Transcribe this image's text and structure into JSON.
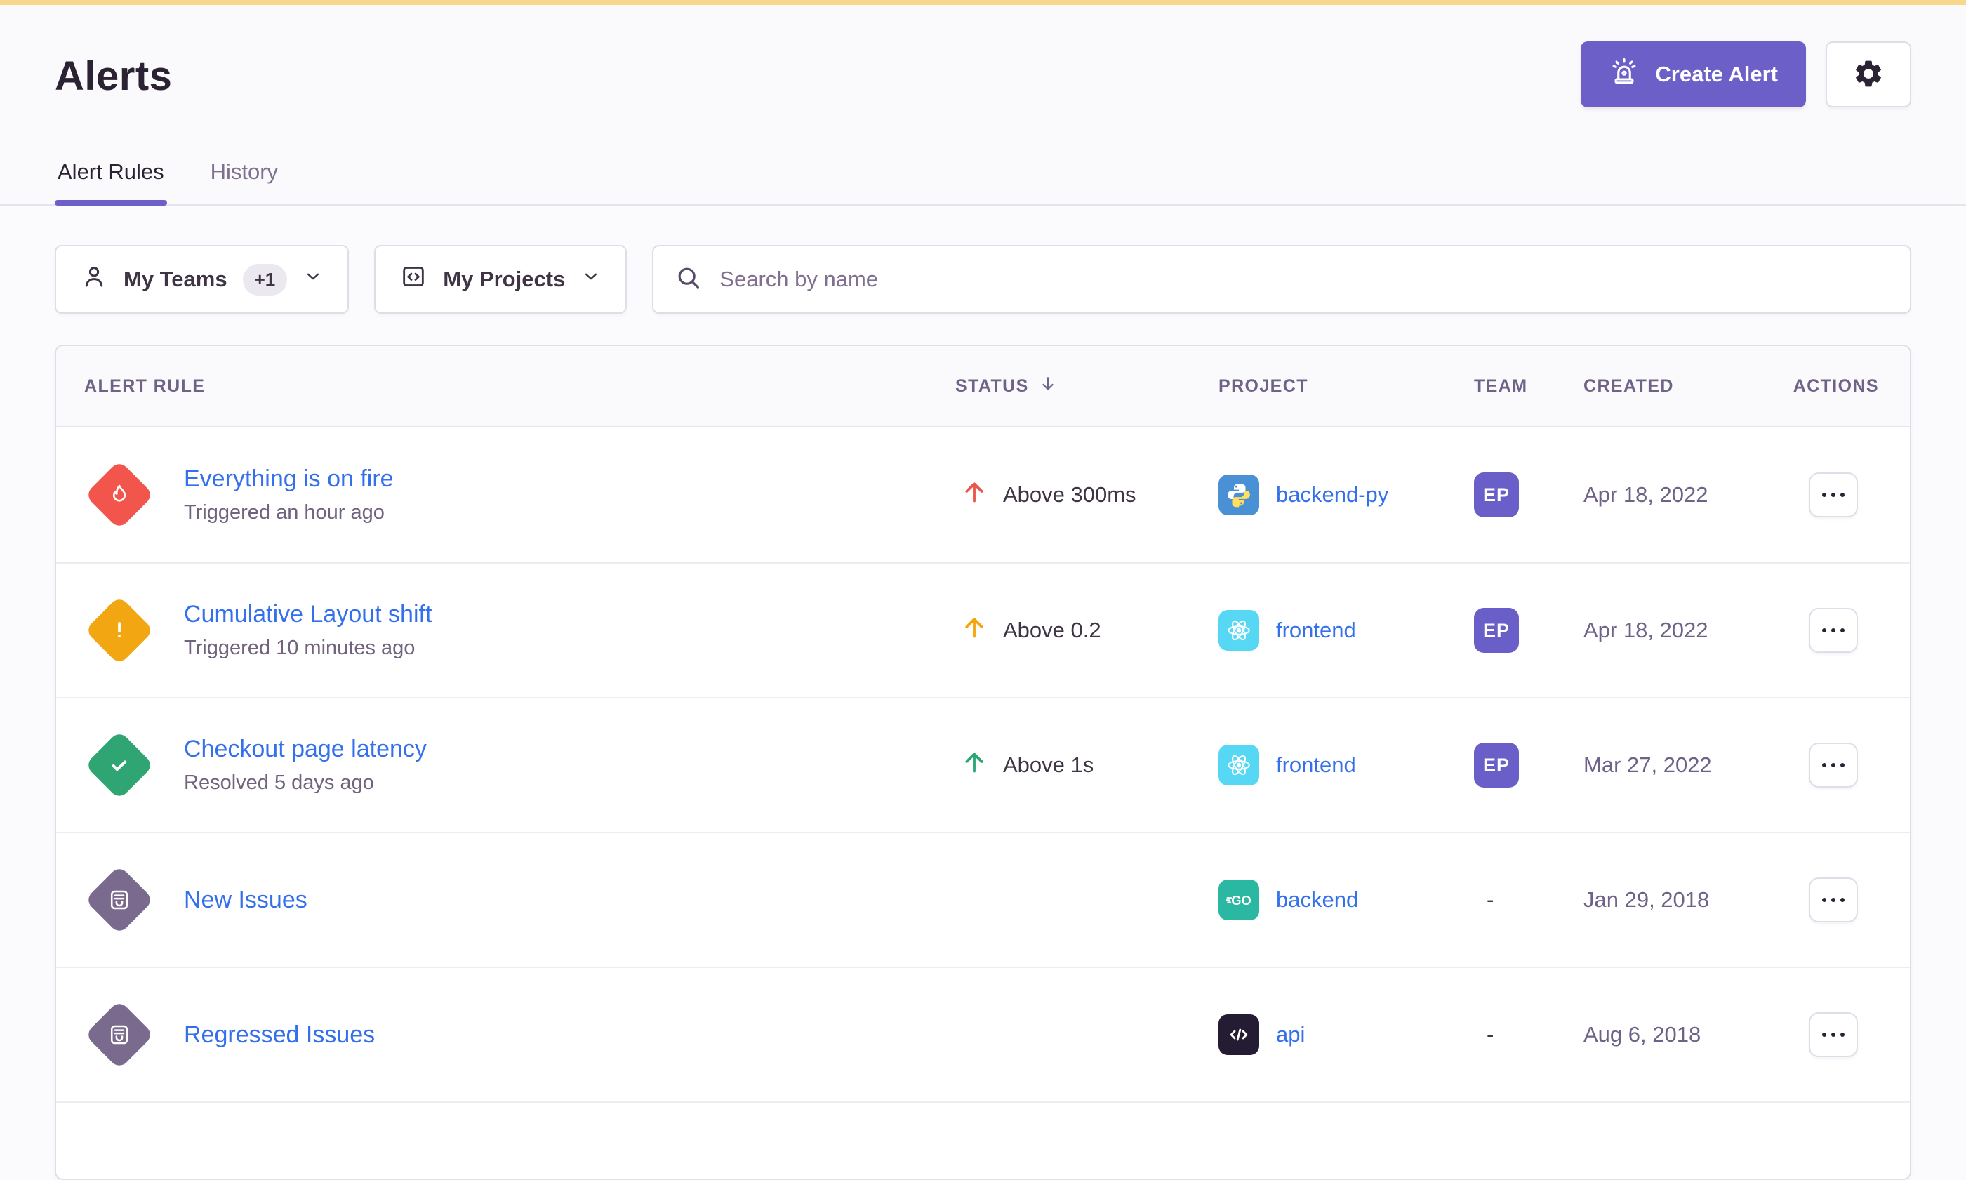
{
  "page": {
    "title": "Alerts"
  },
  "header": {
    "create_alert_label": "Create Alert",
    "tabs": [
      {
        "label": "Alert Rules",
        "active": true
      },
      {
        "label": "History",
        "active": false
      }
    ]
  },
  "filters": {
    "teams_label": "My Teams",
    "teams_extra_count": "+1",
    "projects_label": "My Projects",
    "search_placeholder": "Search by name"
  },
  "table": {
    "columns": [
      "Alert Rule",
      "Status",
      "Project",
      "Team",
      "Created",
      "Actions"
    ],
    "sorted_column": "Status",
    "sort_direction": "desc",
    "rows": [
      {
        "severity": "critical",
        "name": "Everything is on fire",
        "detail": "Triggered an hour ago",
        "status": {
          "direction": "up",
          "label": "Above 300ms",
          "color": "#E8564B"
        },
        "project": {
          "platform": "python",
          "name": "backend-py"
        },
        "team": "EP",
        "created": "Apr 18, 2022"
      },
      {
        "severity": "warning",
        "name": "Cumulative Layout shift",
        "detail": "Triggered 10 minutes ago",
        "status": {
          "direction": "up",
          "label": "Above 0.2",
          "color": "#F2A50C"
        },
        "project": {
          "platform": "react",
          "name": "frontend"
        },
        "team": "EP",
        "created": "Apr 18, 2022"
      },
      {
        "severity": "resolved",
        "name": "Checkout page latency",
        "detail": "Resolved 5 days ago",
        "status": {
          "direction": "up",
          "label": "Above 1s",
          "color": "#2BA673"
        },
        "project": {
          "platform": "react",
          "name": "frontend"
        },
        "team": "EP",
        "created": "Mar 27, 2022"
      },
      {
        "severity": "issue",
        "name": "New Issues",
        "detail": "",
        "status": null,
        "project": {
          "platform": "go",
          "name": "backend"
        },
        "team": "-",
        "created": "Jan 29, 2018"
      },
      {
        "severity": "issue",
        "name": "Regressed Issues",
        "detail": "",
        "status": null,
        "project": {
          "platform": "code",
          "name": "api"
        },
        "team": "-",
        "created": "Aug 6, 2018"
      }
    ]
  },
  "icons": {
    "create_alert": "siren-icon",
    "settings": "gear-icon",
    "teams_filter": "user-icon",
    "projects_filter": "window-code-icon",
    "search": "search-icon",
    "dropdown": "chevron-down-icon",
    "status_sort": "arrow-down-icon",
    "status_trend": "arrow-up-icon",
    "row_actions": "ellipsis-icon",
    "severity": {
      "critical": "flame-icon",
      "warning": "exclamation-icon",
      "resolved": "check-icon",
      "issue": "issues-stack-icon"
    },
    "platform": {
      "python": "python-logo-icon",
      "react": "react-logo-icon",
      "go": "go-logo-icon",
      "code": "code-brackets-icon"
    }
  },
  "colors": {
    "accent": "#6C5FC7",
    "link": "#3470EB",
    "top_strip": "#F5D88B",
    "team_badge": "#6A5FC8",
    "severity": {
      "critical": "#F1554C",
      "warning": "#F2A712",
      "resolved": "#2FA573",
      "issue": "#7A6B8E"
    },
    "platform": {
      "python": "#4A90D4",
      "react": "#56D8F5",
      "go": "#2BB8A2",
      "code": "#241C32"
    }
  }
}
